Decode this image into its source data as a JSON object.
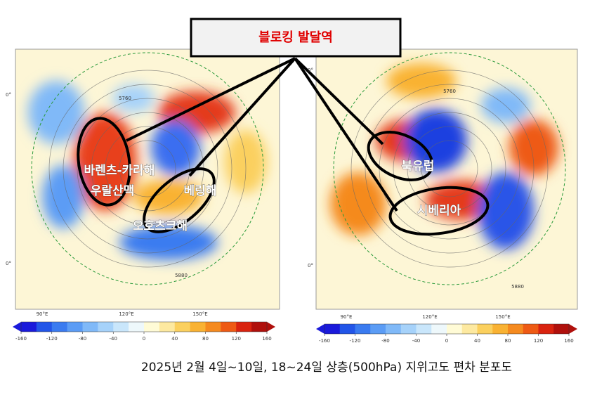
{
  "callout": {
    "title": "블로킹 발달역"
  },
  "left_map": {
    "regions": [
      "바렌츠-카라해",
      "우랄산맥",
      "베링해",
      "오호츠크해"
    ],
    "lon_labels": [
      "90°E",
      "120°E",
      "150°E"
    ],
    "lat_labels": [
      "0°",
      "0°"
    ],
    "contour_labels": [
      "5760",
      "5880"
    ],
    "colorbar": {
      "lim": [
        -160,
        160
      ],
      "ticks": [
        -160,
        -120,
        -80,
        -40,
        0,
        40,
        80,
        120,
        160
      ]
    }
  },
  "right_map": {
    "regions": [
      "북유럽",
      "시베리아"
    ],
    "lon_labels": [
      "90°E",
      "120°E",
      "150°E"
    ],
    "lat_labels": [
      "0°",
      "0°"
    ],
    "contour_labels": [
      "5760",
      "5880"
    ],
    "colorbar": {
      "lim": [
        -160,
        160
      ],
      "ticks": [
        -160,
        -120,
        -80,
        -40,
        0,
        40,
        80,
        120,
        160
      ]
    }
  },
  "colorbar_colors": [
    "#1a1adb",
    "#2255e8",
    "#3a7bf0",
    "#5b9cf5",
    "#80b9f8",
    "#a6d2fa",
    "#c9e6fb",
    "#eef8fb",
    "#fffbd6",
    "#fde9a0",
    "#fbd05e",
    "#f9b233",
    "#f58a1f",
    "#ee5a14",
    "#d9230f",
    "#b0100c"
  ],
  "caption": "2025년 2월 4일~10일, 18~24일 상층(500hPa) 지위고도 편차 분포도"
}
